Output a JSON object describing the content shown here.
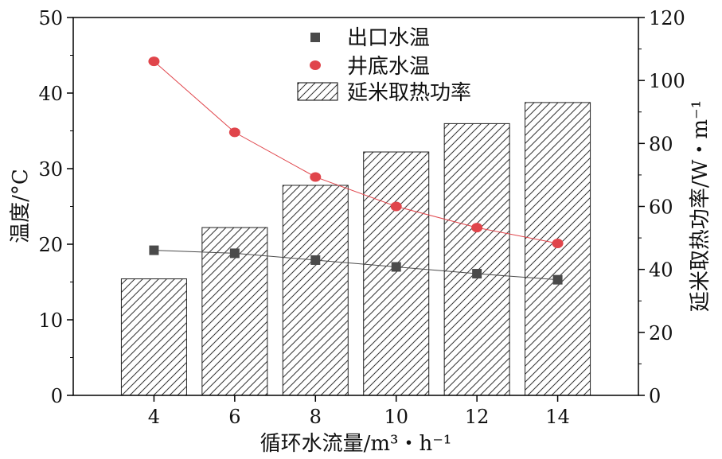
{
  "chart_data": {
    "type": "bar+line",
    "x": [
      4,
      6,
      8,
      10,
      12,
      14
    ],
    "xlabel": "循环水流量/m³・h⁻¹",
    "xlim": [
      2,
      16
    ],
    "ylabel_left": "温度/°C",
    "ylim_left": [
      0,
      50
    ],
    "yticks_left": [
      0,
      10,
      20,
      30,
      40,
      50
    ],
    "ylabel_right": "延米取热功率/W・m⁻¹",
    "ylim_right": [
      0,
      120
    ],
    "yticks_right": [
      0,
      20,
      40,
      60,
      80,
      100,
      120
    ],
    "legend_position": "top-center",
    "series": [
      {
        "name": "出口水温",
        "kind": "line-marker",
        "marker": "square",
        "axis": "left",
        "color": "#4a4a4a",
        "values": [
          19.2,
          18.8,
          17.9,
          17.0,
          16.1,
          15.3
        ]
      },
      {
        "name": "井底水温",
        "kind": "line-marker",
        "marker": "circle",
        "axis": "left",
        "color": "#e0454b",
        "values": [
          44.2,
          34.8,
          28.9,
          25.0,
          22.2,
          20.1
        ]
      },
      {
        "name": "延米取热功率",
        "kind": "bar",
        "pattern": "hatch",
        "axis": "right",
        "color": "#333333",
        "values": [
          37,
          53.3,
          66.7,
          77.3,
          86.3,
          93
        ]
      }
    ]
  }
}
